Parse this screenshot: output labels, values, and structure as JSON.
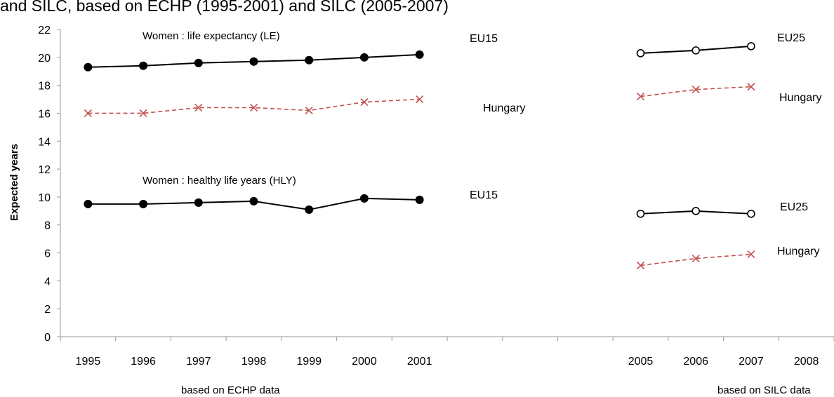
{
  "chart_data": {
    "type": "line",
    "title": "and SILC, based on ECHP (1995-2001) and SILC (2005-2007)",
    "ylabel": "Expected years",
    "xlabel": "",
    "ylim": [
      0,
      22
    ],
    "yticks": [
      0,
      2,
      4,
      6,
      8,
      10,
      12,
      14,
      16,
      18,
      20,
      22
    ],
    "categories": [
      "1995",
      "1996",
      "1997",
      "1998",
      "1999",
      "2000",
      "2001",
      "",
      "",
      "",
      "2005",
      "2006",
      "2007",
      "2008"
    ],
    "grid": false,
    "source_notes": [
      "based on ECHP data",
      "based on SILC data"
    ],
    "annotations": [
      "Women : life expectancy (LE)",
      "Women : healthy life years (HLY)"
    ],
    "series": [
      {
        "name": "EU15",
        "group": "LE",
        "style": "solid",
        "marker": "filled-circle",
        "color": "#000000",
        "x": [
          "1995",
          "1996",
          "1997",
          "1998",
          "1999",
          "2000",
          "2001"
        ],
        "values": [
          19.3,
          19.4,
          19.6,
          19.7,
          19.8,
          20.0,
          20.2
        ]
      },
      {
        "name": "Hungary",
        "group": "LE",
        "style": "dashed",
        "marker": "x",
        "color": "#c0504d",
        "x": [
          "1995",
          "1996",
          "1997",
          "1998",
          "1999",
          "2000",
          "2001"
        ],
        "values": [
          16.0,
          16.0,
          16.4,
          16.4,
          16.2,
          16.8,
          17.0
        ]
      },
      {
        "name": "EU25",
        "group": "LE",
        "style": "solid",
        "marker": "open-circle",
        "color": "#000000",
        "x": [
          "2005",
          "2006",
          "2007"
        ],
        "values": [
          20.3,
          20.5,
          20.8
        ]
      },
      {
        "name": "Hungary",
        "group": "LE",
        "style": "dashed",
        "marker": "x",
        "color": "#c0504d",
        "x": [
          "2005",
          "2006",
          "2007"
        ],
        "values": [
          17.2,
          17.7,
          17.9
        ]
      },
      {
        "name": "EU15",
        "group": "HLY",
        "style": "solid",
        "marker": "filled-circle",
        "color": "#000000",
        "x": [
          "1995",
          "1996",
          "1997",
          "1998",
          "1999",
          "2000",
          "2001"
        ],
        "values": [
          9.5,
          9.5,
          9.6,
          9.7,
          9.1,
          9.9,
          9.8
        ]
      },
      {
        "name": "EU25",
        "group": "HLY",
        "style": "solid",
        "marker": "open-circle",
        "color": "#000000",
        "x": [
          "2005",
          "2006",
          "2007"
        ],
        "values": [
          8.8,
          9.0,
          8.8
        ]
      },
      {
        "name": "Hungary",
        "group": "HLY",
        "style": "dashed",
        "marker": "x",
        "color": "#c0504d",
        "x": [
          "2005",
          "2006",
          "2007"
        ],
        "values": [
          5.1,
          5.6,
          5.9
        ]
      }
    ]
  }
}
